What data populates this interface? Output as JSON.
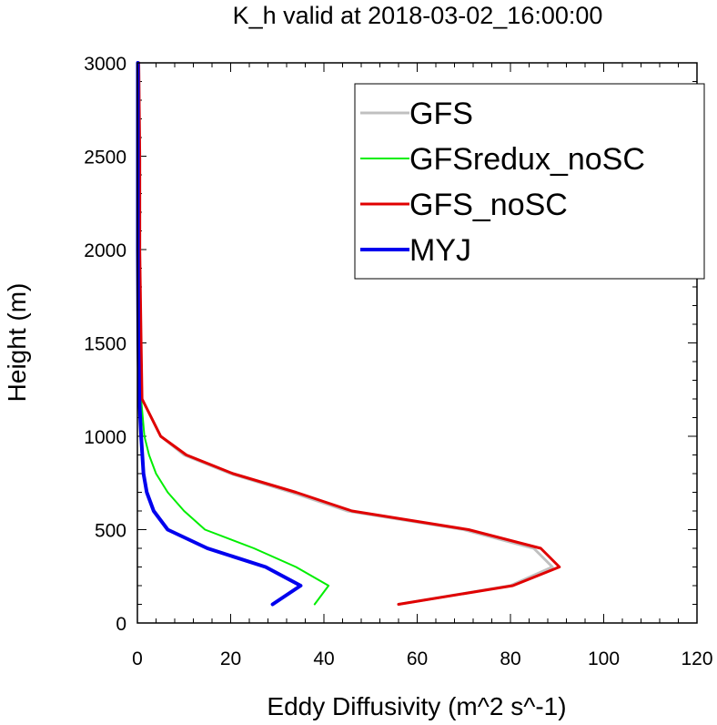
{
  "chart_data": {
    "type": "line",
    "title": "K_h valid at 2018-03-02_16:00:00",
    "xlabel": "Eddy Diffusivity (m^2 s^-1)",
    "ylabel": "Height (m)",
    "xlim": [
      0,
      120
    ],
    "ylim": [
      0,
      3000
    ],
    "x_ticks": [
      0,
      20,
      40,
      60,
      80,
      100,
      120
    ],
    "y_ticks": [
      0,
      500,
      1000,
      1500,
      2000,
      2500,
      3000
    ],
    "x_tick_labels": [
      "0",
      "20",
      "40",
      "60",
      "80",
      "100",
      "120"
    ],
    "y_tick_labels": [
      "0",
      "500",
      "1000",
      "1500",
      "2000",
      "2500",
      "3000"
    ],
    "grid": false,
    "legend_position": "top-right",
    "series": [
      {
        "name": "GFS",
        "color": "#c0c0c0",
        "width": 3,
        "points": [
          [
            56,
            100
          ],
          [
            80,
            200
          ],
          [
            89,
            300
          ],
          [
            85,
            400
          ],
          [
            70,
            500
          ],
          [
            45,
            600
          ],
          [
            33,
            700
          ],
          [
            20,
            800
          ],
          [
            10,
            900
          ],
          [
            5,
            1000
          ],
          [
            1,
            1200
          ],
          [
            0.5,
            1500
          ],
          [
            0.5,
            2000
          ],
          [
            0.5,
            2500
          ],
          [
            0.3,
            3000
          ]
        ]
      },
      {
        "name": "GFSredux_noSC",
        "color": "#00ee00",
        "width": 2,
        "points": [
          [
            38,
            100
          ],
          [
            41,
            200
          ],
          [
            34,
            300
          ],
          [
            25,
            400
          ],
          [
            14.5,
            500
          ],
          [
            10,
            600
          ],
          [
            6.5,
            700
          ],
          [
            4,
            800
          ],
          [
            2.5,
            900
          ],
          [
            1.5,
            1000
          ],
          [
            0.8,
            1200
          ],
          [
            0.3,
            1500
          ],
          [
            0.2,
            2000
          ],
          [
            0.1,
            2500
          ],
          [
            0.1,
            3000
          ]
        ]
      },
      {
        "name": "GFS_noSC",
        "color": "#e00000",
        "width": 3,
        "points": [
          [
            56,
            100
          ],
          [
            80.5,
            200
          ],
          [
            90.5,
            300
          ],
          [
            86.5,
            400
          ],
          [
            71,
            500
          ],
          [
            46,
            600
          ],
          [
            34,
            700
          ],
          [
            20.5,
            800
          ],
          [
            10.5,
            900
          ],
          [
            5,
            1000
          ],
          [
            1,
            1200
          ],
          [
            0.8,
            1500
          ],
          [
            0.5,
            2000
          ],
          [
            0.5,
            2500
          ],
          [
            0.3,
            3000
          ]
        ]
      },
      {
        "name": "MYJ",
        "color": "#0000ee",
        "width": 4,
        "points": [
          [
            29,
            100
          ],
          [
            35,
            200
          ],
          [
            27.5,
            300
          ],
          [
            15,
            400
          ],
          [
            6.5,
            500
          ],
          [
            3.5,
            600
          ],
          [
            2,
            700
          ],
          [
            1.3,
            800
          ],
          [
            0.8,
            1000
          ],
          [
            0.4,
            1200
          ],
          [
            0.2,
            1500
          ],
          [
            0.1,
            2000
          ],
          [
            0.1,
            2500
          ],
          [
            0.1,
            3000
          ]
        ]
      }
    ]
  }
}
